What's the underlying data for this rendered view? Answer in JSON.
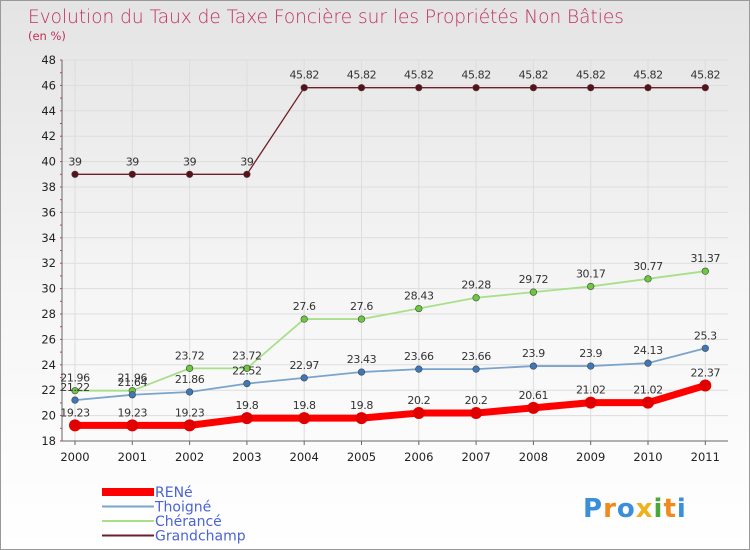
{
  "chart_data": {
    "type": "line",
    "title": "Evolution du Taux de Taxe Foncière sur les Propriétés Non Bâties",
    "subtitle": "(en %)",
    "x": [
      "2000",
      "2001",
      "2002",
      "2003",
      "2004",
      "2005",
      "2006",
      "2007",
      "2008",
      "2009",
      "2010",
      "2011"
    ],
    "ylim": [
      18,
      48
    ],
    "yticks": [
      18,
      20,
      22,
      24,
      26,
      28,
      30,
      32,
      34,
      36,
      38,
      40,
      42,
      44,
      46,
      48
    ],
    "ytick_labels": [
      "18",
      "20",
      "22",
      "24",
      "26",
      "28",
      "30",
      "32",
      "34",
      "36",
      "38",
      "40",
      "42",
      "44",
      "46",
      "48"
    ],
    "grid": true,
    "legend_position": "bottom-left",
    "series": [
      {
        "name": "Grandchamp",
        "color": "#6b1f2a",
        "point_color": "#5a1018",
        "width": 1.3,
        "values": [
          39,
          39,
          39,
          39,
          45.82,
          45.82,
          45.82,
          45.82,
          45.82,
          45.82,
          45.82,
          45.82
        ],
        "labels": [
          "39",
          "39",
          "39",
          "39",
          "45.82",
          "45.82",
          "45.82",
          "45.82",
          "45.82",
          "45.82",
          "45.82",
          "45.82"
        ]
      },
      {
        "name": "Chérancé",
        "color": "#a8e08a",
        "point_color": "#6cc83c",
        "width": 1.8,
        "values": [
          21.96,
          21.96,
          23.72,
          23.72,
          27.6,
          27.6,
          28.43,
          29.28,
          29.72,
          30.17,
          30.77,
          31.37
        ],
        "labels": [
          "21.96",
          "21.96",
          "23.72",
          "23.72",
          "27.6",
          "27.6",
          "28.43",
          "29.28",
          "29.72",
          "30.17",
          "30.77",
          "31.37"
        ]
      },
      {
        "name": "Thoigné",
        "color": "#7ba4cc",
        "point_color": "#3e78b8",
        "width": 1.8,
        "values": [
          21.22,
          21.64,
          21.86,
          22.52,
          22.97,
          23.43,
          23.66,
          23.66,
          23.9,
          23.9,
          24.13,
          25.3
        ],
        "labels": [
          "21.22",
          "21.64",
          "21.86",
          "22.52",
          "22.97",
          "23.43",
          "23.66",
          "23.66",
          "23.9",
          "23.9",
          "24.13",
          "25.3"
        ]
      },
      {
        "name": "RENé",
        "color": "#ff0000",
        "point_color": "#e00000",
        "width": 7,
        "values": [
          19.23,
          19.23,
          19.23,
          19.8,
          19.8,
          19.8,
          20.2,
          20.2,
          20.61,
          21.02,
          21.02,
          22.37
        ],
        "labels": [
          "19.23",
          "19.23",
          "19.23",
          "19.8",
          "19.8",
          "19.8",
          "20.2",
          "20.2",
          "20.61",
          "21.02",
          "21.02",
          "22.37"
        ]
      }
    ],
    "legend": [
      "RENé",
      "Thoigné",
      "Chérancé",
      "Grandchamp"
    ]
  },
  "colors": {
    "title": "#c0305a",
    "legend_text": "#4a63d8",
    "axis": "#666666",
    "grid": "#dddddd",
    "border": "#999999"
  },
  "logo": {
    "letters": [
      "P",
      "r",
      "o",
      "x",
      "i",
      "t",
      "i"
    ],
    "colors": [
      "#3a8fd8",
      "#f08a1c",
      "#3a8fd8",
      "#f0b21c",
      "#4aa83a",
      "#f08a1c",
      "#3a8fd8"
    ]
  }
}
